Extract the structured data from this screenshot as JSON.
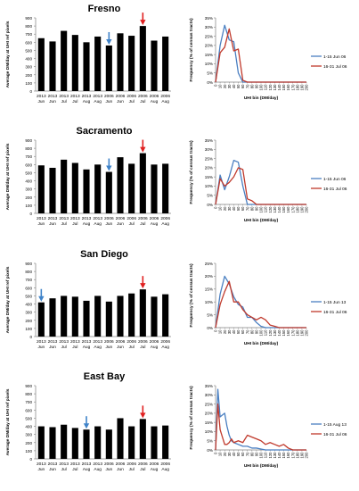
{
  "colors": {
    "bar": "#000000",
    "blue_series": "#4a7fc1",
    "red_series": "#c0392b",
    "blue_arrow": "#3f83c9",
    "red_arrow": "#e02020",
    "axis": "#808080",
    "grid_text": "#000000"
  },
  "common": {
    "bar_ylabel": "Average DM/day at UHI ref pixels",
    "bar_yticks": [
      "0",
      "100",
      "200",
      "300",
      "400",
      "500",
      "600",
      "700",
      "800",
      "900"
    ],
    "freq_ylabel": "Frequency (% of census tracts)",
    "freq_xlabel": "UHI bin (DM/day)",
    "freq_xticks": [
      "0",
      "10",
      "20",
      "30",
      "40",
      "50",
      "60",
      "70",
      "80",
      "90",
      "100",
      "110",
      "120",
      "130",
      "140",
      "150",
      "160",
      "170",
      "180",
      "190",
      "200"
    ],
    "freq_yticks": [
      "0%",
      "5%",
      "10%",
      "15%",
      "20%",
      "25%",
      "30%",
      "35%"
    ]
  },
  "chart_data": [
    {
      "type": "bar",
      "title": "Fresno",
      "ylabel": "Average DM/day at UHI ref pixels",
      "ylim": [
        0,
        900
      ],
      "categories": [
        [
          "2013",
          "Jun"
        ],
        [
          "2013",
          "Jun"
        ],
        [
          "2013",
          "Jul"
        ],
        [
          "2013",
          "Jul"
        ],
        [
          "2013",
          "Aug"
        ],
        [
          "2013",
          "Aug"
        ],
        [
          "2006",
          "Jun"
        ],
        [
          "2006",
          "Jun"
        ],
        [
          "2006",
          "Jul"
        ],
        [
          "2006",
          "Jul"
        ],
        [
          "2006",
          "Aug"
        ],
        [
          "2006",
          "Aug"
        ]
      ],
      "values": [
        650,
        610,
        740,
        690,
        600,
        670,
        560,
        710,
        680,
        800,
        620,
        670
      ],
      "blue_arrow_index": 6,
      "red_arrow_index": 9
    },
    {
      "type": "line",
      "xlabel": "UHI bin (DM/day)",
      "ylabel": "Frequency (% of census tracts)",
      "xlim": [
        0,
        200
      ],
      "ylim": [
        0,
        35
      ],
      "legend_position": "right",
      "series": [
        {
          "name": "1-15 Jun 06",
          "color": "#4a7fc1",
          "x": [
            0,
            10,
            20,
            30,
            40,
            50,
            60,
            70,
            80,
            200
          ],
          "y": [
            0,
            20,
            31,
            23,
            22,
            5,
            0,
            0,
            0,
            0
          ]
        },
        {
          "name": "16-31 Jul 06",
          "color": "#c0392b",
          "x": [
            0,
            10,
            20,
            30,
            40,
            50,
            60,
            70,
            80,
            200
          ],
          "y": [
            0,
            16,
            19,
            29,
            17,
            18,
            1,
            0,
            0,
            0
          ]
        }
      ]
    },
    {
      "type": "bar",
      "title": "Sacramento",
      "ylabel": "Average DM/day at UHI ref pixels",
      "ylim": [
        0,
        900
      ],
      "categories": [
        [
          "2013",
          "Jun"
        ],
        [
          "2013",
          "Jun"
        ],
        [
          "2013",
          "Jul"
        ],
        [
          "2013",
          "Jul"
        ],
        [
          "2013",
          "Aug"
        ],
        [
          "2013",
          "Aug"
        ],
        [
          "2006",
          "Jun"
        ],
        [
          "2006",
          "Jun"
        ],
        [
          "2006",
          "Jul"
        ],
        [
          "2006",
          "Jul"
        ],
        [
          "2006",
          "Aug"
        ],
        [
          "2006",
          "Aug"
        ]
      ],
      "values": [
        590,
        560,
        660,
        620,
        540,
        600,
        510,
        690,
        610,
        740,
        600,
        610
      ],
      "blue_arrow_index": 6,
      "red_arrow_index": 9
    },
    {
      "type": "line",
      "xlabel": "UHI bin (DM/day)",
      "ylabel": "Frequency (% of census tracts)",
      "xlim": [
        0,
        200
      ],
      "ylim": [
        0,
        35
      ],
      "legend_position": "right",
      "series": [
        {
          "name": "1-15 Jun 06",
          "color": "#4a7fc1",
          "x": [
            0,
            10,
            20,
            30,
            40,
            50,
            60,
            70,
            80,
            200
          ],
          "y": [
            0,
            16,
            8,
            15,
            24,
            23,
            10,
            0,
            0,
            0
          ]
        },
        {
          "name": "16-31 Jul 06",
          "color": "#c0392b",
          "x": [
            0,
            10,
            20,
            30,
            40,
            50,
            60,
            70,
            80,
            90,
            100,
            200
          ],
          "y": [
            0,
            14,
            10,
            12,
            15,
            20,
            19,
            3,
            2,
            0,
            0,
            0
          ]
        }
      ]
    },
    {
      "type": "bar",
      "title": "San Diego",
      "ylabel": "Average DM/day at UHI ref pixels",
      "ylim": [
        0,
        900
      ],
      "categories": [
        [
          "2013",
          "Jun"
        ],
        [
          "2013",
          "Jun"
        ],
        [
          "2013",
          "Jul"
        ],
        [
          "2013",
          "Jul"
        ],
        [
          "2013",
          "Aug"
        ],
        [
          "2013",
          "Aug"
        ],
        [
          "2006",
          "Jun"
        ],
        [
          "2006",
          "Jun"
        ],
        [
          "2006",
          "Jul"
        ],
        [
          "2006",
          "Jul"
        ],
        [
          "2006",
          "Aug"
        ],
        [
          "2006",
          "Aug"
        ]
      ],
      "values": [
        420,
        470,
        500,
        490,
        440,
        500,
        430,
        500,
        530,
        580,
        490,
        520
      ],
      "blue_arrow_index": 0,
      "red_arrow_index": 9
    },
    {
      "type": "line",
      "xlabel": "UHI bin (DM/day)",
      "ylabel": "Frequency (% of census tracts)",
      "xlim": [
        0,
        200
      ],
      "ylim": [
        0,
        25
      ],
      "yticks": [
        "0%",
        "5%",
        "10%",
        "15%",
        "20%",
        "25%"
      ],
      "legend_position": "right",
      "series": [
        {
          "name": "1-15 Jun 13",
          "color": "#4a7fc1",
          "x": [
            0,
            10,
            20,
            30,
            40,
            50,
            60,
            70,
            80,
            90,
            100,
            110,
            200
          ],
          "y": [
            0,
            13,
            20,
            17,
            12,
            9,
            8,
            4,
            4,
            2,
            0.5,
            0,
            0
          ]
        },
        {
          "name": "16-31 Jul 06",
          "color": "#c0392b",
          "x": [
            0,
            10,
            20,
            30,
            40,
            50,
            60,
            70,
            80,
            90,
            100,
            110,
            120,
            130,
            140,
            200
          ],
          "y": [
            0,
            9,
            14,
            18,
            10,
            10,
            7,
            5,
            4,
            3,
            4,
            3,
            1,
            0.5,
            0,
            0
          ]
        }
      ]
    },
    {
      "type": "bar",
      "title": "East Bay",
      "ylabel": "Average DM/day at UHI ref pixels",
      "ylim": [
        0,
        900
      ],
      "categories": [
        [
          "2013",
          "Jun"
        ],
        [
          "2013",
          "Jun"
        ],
        [
          "2013",
          "Jul"
        ],
        [
          "2013",
          "Jul"
        ],
        [
          "2013",
          "Aug"
        ],
        [
          "2013",
          "Aug"
        ],
        [
          "2006",
          "Jun"
        ],
        [
          "2006",
          "Jun"
        ],
        [
          "2006",
          "Jul"
        ],
        [
          "2006",
          "Jul"
        ],
        [
          "2006",
          "Aug"
        ],
        [
          "2006",
          "Aug"
        ]
      ],
      "values": [
        400,
        390,
        420,
        380,
        360,
        400,
        360,
        500,
        400,
        490,
        400,
        410
      ],
      "blue_arrow_index": 4,
      "red_arrow_index": 9
    },
    {
      "type": "line",
      "xlabel": "UHI bin (DM/day)",
      "ylabel": "Frequency (% of census tracts)",
      "xlim": [
        0,
        200
      ],
      "ylim": [
        0,
        35
      ],
      "legend_position": "right",
      "series": [
        {
          "name": "1-15 Aug 13",
          "color": "#4a7fc1",
          "x": [
            0,
            5,
            10,
            15,
            20,
            25,
            30,
            35,
            40,
            50,
            60,
            70,
            80,
            90,
            100,
            110,
            120,
            130,
            140,
            200
          ],
          "y": [
            0,
            33,
            18,
            19,
            20,
            13,
            8,
            5,
            4,
            3,
            2,
            2,
            1,
            1,
            0.5,
            0,
            0,
            0,
            0,
            0
          ]
        },
        {
          "name": "16-31 Jul 06",
          "color": "#c0392b",
          "x": [
            0,
            5,
            10,
            15,
            20,
            25,
            30,
            35,
            40,
            50,
            60,
            70,
            80,
            90,
            100,
            110,
            120,
            130,
            140,
            150,
            160,
            170,
            200
          ],
          "y": [
            0,
            25,
            11,
            7,
            3,
            3,
            4,
            6,
            4,
            5,
            4,
            8,
            7,
            6,
            5,
            3,
            4,
            3,
            2,
            3,
            1,
            0,
            0
          ]
        }
      ]
    }
  ]
}
